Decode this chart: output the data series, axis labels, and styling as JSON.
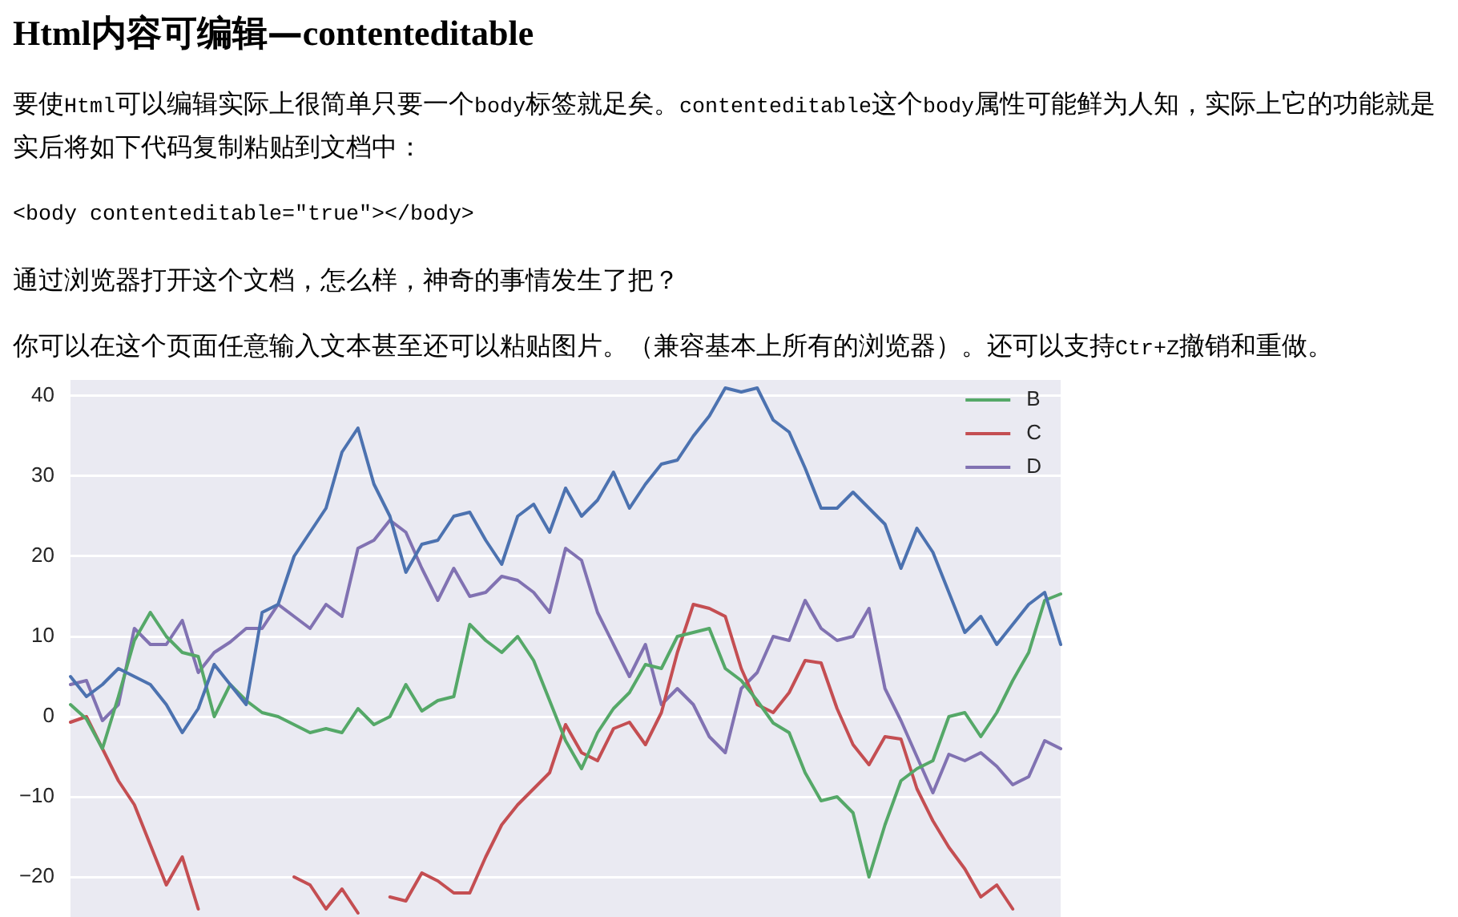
{
  "chart_data": {
    "type": "line",
    "title": "Html内容可编辑—contenteditable",
    "annotations": [
      "要使Html可以编辑实际上很简单只要一个body标签就足矣。contenteditable这个body属性可能鲜为人知，实际上它的功能就是实后将如下代码复制粘贴到文档中：",
      "<body contenteditable=\"true\"></body>",
      "通过浏览器打开这个文档，怎么样，神奇的事情发生了把？",
      "你可以在这个页面任意输入文本甚至还可以粘贴图片。（兼容基本上所有的浏览器）。还可以支持Ctr+Z撤销和重做。"
    ],
    "categories": [
      null,
      null,
      null,
      null,
      null,
      null,
      null,
      null,
      null,
      null,
      null,
      null,
      null,
      null,
      null,
      null,
      null,
      null,
      null,
      null,
      null,
      null,
      null,
      null,
      null,
      null,
      null,
      null,
      null,
      null,
      null,
      null,
      null,
      null,
      null,
      null,
      null,
      null,
      null,
      null,
      null,
      null,
      null,
      null,
      null,
      null,
      null,
      null,
      null,
      null,
      null,
      null,
      null,
      null,
      null,
      null,
      null,
      null,
      null,
      null,
      null,
      null,
      null
    ],
    "series": [
      {
        "color": "#4c72b0",
        "values": [
          5,
          2.5,
          4,
          6,
          5,
          4,
          1.5,
          -2,
          1,
          6.5,
          4,
          1.5,
          13,
          14,
          20,
          23,
          26,
          33,
          36,
          29,
          25,
          18,
          21.5,
          22,
          25,
          25.5,
          22,
          19,
          25,
          26.5,
          23,
          28.5,
          25,
          27,
          30.5,
          26,
          29,
          31.5,
          32,
          35,
          37.5,
          41,
          40.5,
          41,
          37,
          35.5,
          31,
          26,
          26,
          28,
          26,
          24,
          18.5,
          23.5,
          20.5,
          15.5,
          10.5,
          12.5,
          9,
          11.5,
          14,
          15.5,
          9
        ]
      },
      {
        "name": "B",
        "color": "#55a868",
        "values": [
          1.5,
          -0.3,
          -4,
          2.5,
          9.5,
          13,
          10,
          8,
          7.5,
          0,
          4,
          2,
          0.5,
          0,
          -1,
          -2,
          -1.5,
          -2,
          1,
          -1,
          0,
          4,
          0.7,
          2,
          2.5,
          11.5,
          9.5,
          8,
          10,
          7,
          2,
          -3,
          -6.5,
          -2,
          1,
          3,
          6.5,
          6,
          10,
          10.5,
          11,
          6,
          4.5,
          2,
          -0.8,
          -2,
          -7,
          -10.5,
          -10,
          -12,
          -20,
          -13.5,
          -8,
          -6.5,
          -5.5,
          0,
          0.5,
          -2.5,
          0.5,
          4.5,
          8,
          14.5,
          15.3
        ]
      },
      {
        "name": "C",
        "color": "#c44e52",
        "values": [
          -0.7,
          0,
          -4,
          -8,
          -11,
          -16,
          -21,
          -17.5,
          -24,
          null,
          null,
          null,
          null,
          null,
          -20,
          -21,
          -24,
          -21.5,
          -24.5,
          null,
          -22.5,
          -23,
          -19.5,
          -20.5,
          -22,
          -22,
          -17.5,
          -13.5,
          -11,
          -9,
          -7,
          -1,
          -4.5,
          -5.5,
          -1.5,
          -0.7,
          -3.5,
          0.5,
          8,
          14,
          13.5,
          12.5,
          6,
          1.5,
          0.5,
          3,
          7,
          6.7,
          1,
          -3.5,
          -6,
          -2.5,
          -2.8,
          -9,
          -13,
          -16.3,
          -19,
          -22.5,
          -21,
          -24,
          null,
          null,
          null
        ]
      },
      {
        "name": "D",
        "color": "#8172b2",
        "values": [
          4,
          4.5,
          -0.5,
          1.5,
          11,
          9,
          9,
          12,
          5.5,
          8,
          9.3,
          11,
          11,
          14,
          12.5,
          11,
          14,
          12.5,
          21,
          22,
          24.5,
          23,
          18.5,
          14.5,
          18.5,
          15,
          15.5,
          17.5,
          17,
          15.5,
          13,
          21,
          19.5,
          13,
          9,
          5,
          9,
          1.5,
          3.5,
          1.5,
          -2.5,
          -4.5,
          3.5,
          5.5,
          10,
          9.5,
          14.5,
          11,
          9.5,
          10,
          13.5,
          3.5,
          -0.5,
          -5,
          -9.5,
          -4.7,
          -5.5,
          -4.5,
          -6.2,
          -8.5,
          -7.5,
          -3,
          -4
        ]
      }
    ],
    "ylim": [
      -25,
      42
    ],
    "yticks": [
      {
        "value": -20,
        "label": "−20"
      },
      {
        "value": -10,
        "label": "−10"
      },
      0,
      10,
      20,
      30,
      40
    ],
    "grid": "y",
    "legend": "top right",
    "tick_labels": "y"
  }
}
